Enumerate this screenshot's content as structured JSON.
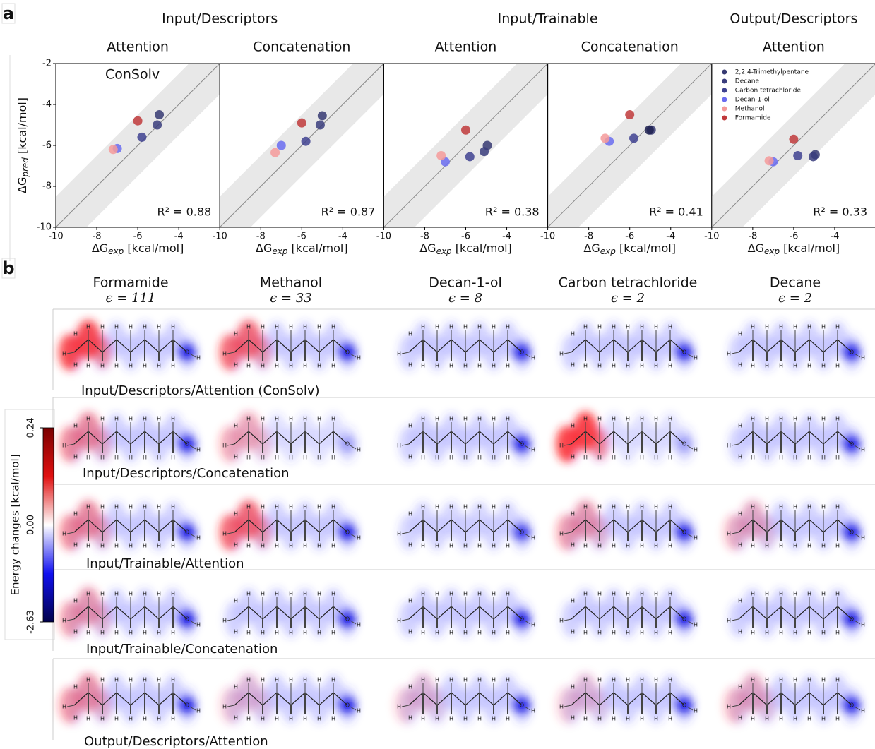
{
  "panel_a": {
    "label": "a",
    "groups": [
      "Input/Descriptors",
      "Input/Trainable",
      "Output/Descriptors"
    ]
  },
  "chart_data": [
    {
      "type": "scatter",
      "title": "Attention",
      "annotation": "ConSolv",
      "r2": "R² = 0.88",
      "xlabel": {
        "symbol": "ΔG",
        "sub": "exp",
        "unit": " [kcal/mol]"
      },
      "ylabel": {
        "symbol": "ΔG",
        "sub": "pred",
        "unit": " [kcal/mol]"
      },
      "xlim": [
        -10,
        -2
      ],
      "ylim": [
        -10,
        -2
      ],
      "xticks": [
        -10,
        -8,
        -6,
        -4
      ],
      "yticks": [
        -10,
        -8,
        -6,
        -4,
        -2
      ],
      "band": 1.5,
      "series": [
        {
          "color": "#363a72",
          "x": [
            -4.95
          ],
          "values": [
            -4.5
          ]
        },
        {
          "color": "#3a3d7d",
          "x": [
            -5.05
          ],
          "values": [
            -5.0
          ]
        },
        {
          "color": "#3f4290",
          "x": [
            -5.8
          ],
          "values": [
            -5.6
          ]
        },
        {
          "color": "#6a6cf0",
          "x": [
            -7.0
          ],
          "values": [
            -6.15
          ]
        },
        {
          "color": "#f49a9a",
          "x": [
            -7.2
          ],
          "values": [
            -6.2
          ]
        },
        {
          "color": "#c0393b",
          "x": [
            -6.0
          ],
          "values": [
            -4.8
          ]
        }
      ]
    },
    {
      "type": "scatter",
      "title": "Concatenation",
      "r2": "R² = 0.87",
      "xlabel": {
        "symbol": "ΔG",
        "sub": "exp",
        "unit": " [kcal/mol]"
      },
      "xlim": [
        -10,
        -2
      ],
      "ylim": [
        -10,
        -2
      ],
      "xticks": [
        -10,
        -8,
        -6,
        -4
      ],
      "band": 1.5,
      "series": [
        {
          "color": "#363a72",
          "x": [
            -5.0
          ],
          "values": [
            -4.55
          ]
        },
        {
          "color": "#3a3d7d",
          "x": [
            -5.1
          ],
          "values": [
            -5.0
          ]
        },
        {
          "color": "#3f4290",
          "x": [
            -5.8
          ],
          "values": [
            -5.8
          ]
        },
        {
          "color": "#6a6cf0",
          "x": [
            -7.0
          ],
          "values": [
            -6.0
          ]
        },
        {
          "color": "#f49a9a",
          "x": [
            -7.3
          ],
          "values": [
            -6.35
          ]
        },
        {
          "color": "#c0393b",
          "x": [
            -6.0
          ],
          "values": [
            -4.9
          ]
        }
      ]
    },
    {
      "type": "scatter",
      "title": "Attention",
      "r2": "R² = 0.38",
      "xlabel": {
        "symbol": "ΔG",
        "sub": "exp",
        "unit": " [kcal/mol]"
      },
      "xlim": [
        -10,
        -2
      ],
      "ylim": [
        -10,
        -2
      ],
      "xticks": [
        -10,
        -8,
        -6,
        -4
      ],
      "band": 1.5,
      "series": [
        {
          "color": "#363a72",
          "x": [
            -4.95
          ],
          "values": [
            -6.0
          ]
        },
        {
          "color": "#3a3d7d",
          "x": [
            -5.1
          ],
          "values": [
            -6.3
          ]
        },
        {
          "color": "#3f4290",
          "x": [
            -5.8
          ],
          "values": [
            -6.55
          ]
        },
        {
          "color": "#6a6cf0",
          "x": [
            -7.0
          ],
          "values": [
            -6.8
          ]
        },
        {
          "color": "#f49a9a",
          "x": [
            -7.2
          ],
          "values": [
            -6.5
          ]
        },
        {
          "color": "#c0393b",
          "x": [
            -6.0
          ],
          "values": [
            -5.25
          ]
        }
      ]
    },
    {
      "type": "scatter",
      "title": "Concatenation",
      "r2": "R² = 0.41",
      "xlabel": {
        "symbol": "ΔG",
        "sub": "exp",
        "unit": " [kcal/mol]"
      },
      "xlim": [
        -10,
        -2
      ],
      "ylim": [
        -10,
        -2
      ],
      "xticks": [
        -10,
        -8,
        -6,
        -4
      ],
      "band": 1.5,
      "series": [
        {
          "color": "#363a72",
          "x": [
            -4.95
          ],
          "values": [
            -5.25
          ]
        },
        {
          "color": "#1f2150",
          "x": [
            -5.05
          ],
          "values": [
            -5.25
          ]
        },
        {
          "color": "#3f4290",
          "x": [
            -5.8
          ],
          "values": [
            -5.65
          ]
        },
        {
          "color": "#6a6cf0",
          "x": [
            -7.0
          ],
          "values": [
            -5.8
          ]
        },
        {
          "color": "#f49a9a",
          "x": [
            -7.2
          ],
          "values": [
            -5.65
          ]
        },
        {
          "color": "#c0393b",
          "x": [
            -6.0
          ],
          "values": [
            -4.5
          ]
        }
      ]
    },
    {
      "type": "scatter",
      "title": "Attention",
      "r2": "R² = 0.33",
      "xlabel": {
        "symbol": "ΔG",
        "sub": "exp",
        "unit": " [kcal/mol]"
      },
      "xlim": [
        -10,
        -2
      ],
      "ylim": [
        -10,
        -2
      ],
      "xticks": [
        -10,
        -8,
        -6,
        -4
      ],
      "band": 1.5,
      "legend": "upper left",
      "series": [
        {
          "name": "2,2,4-Trimethylpentane",
          "color": "#363a72",
          "x": [
            -4.95
          ],
          "values": [
            -6.45
          ]
        },
        {
          "name": "Decane",
          "color": "#3a3d7d",
          "x": [
            -5.05
          ],
          "values": [
            -6.55
          ]
        },
        {
          "name": "Carbon tetrachloride",
          "color": "#3f4290",
          "x": [
            -5.8
          ],
          "values": [
            -6.5
          ]
        },
        {
          "name": "Decan-1-ol",
          "color": "#6a6cf0",
          "x": [
            -7.0
          ],
          "values": [
            -6.8
          ]
        },
        {
          "name": "Methanol",
          "color": "#f49a9a",
          "x": [
            -7.2
          ],
          "values": [
            -6.75
          ]
        },
        {
          "name": "Formamide",
          "color": "#c0393b",
          "x": [
            -6.0
          ],
          "values": [
            -5.7
          ]
        }
      ]
    }
  ],
  "panel_b": {
    "label": "b",
    "columns": [
      {
        "name": "Formamide",
        "epsilon": "ϵ = 111"
      },
      {
        "name": "Methanol",
        "epsilon": "ϵ = 33"
      },
      {
        "name": "Decan-1-ol",
        "epsilon": "ϵ = 8"
      },
      {
        "name": "Carbon tetrachloride",
        "epsilon": "ϵ = 2"
      },
      {
        "name": "Decane",
        "epsilon": "ϵ = 2"
      }
    ],
    "rows": [
      "Input/Descriptors/Attention (ConSolv)",
      "Input/Descriptors/Concatenation",
      "Input/Trainable/Attention",
      "Input/Trainable/Concatenation",
      "Output/Descriptors/Attention"
    ],
    "atoms": {
      "hydrogen": "H",
      "oxygen": "O"
    },
    "colorbar": {
      "label": "Energy changes [kcal/mol]",
      "lim": [
        -2.63,
        0.24
      ],
      "vcenter": 0,
      "norm": "two-slope",
      "ticks": [
        0.24,
        {
          "value": 0,
          "label": "0.00"
        },
        -2.63
      ]
    }
  }
}
